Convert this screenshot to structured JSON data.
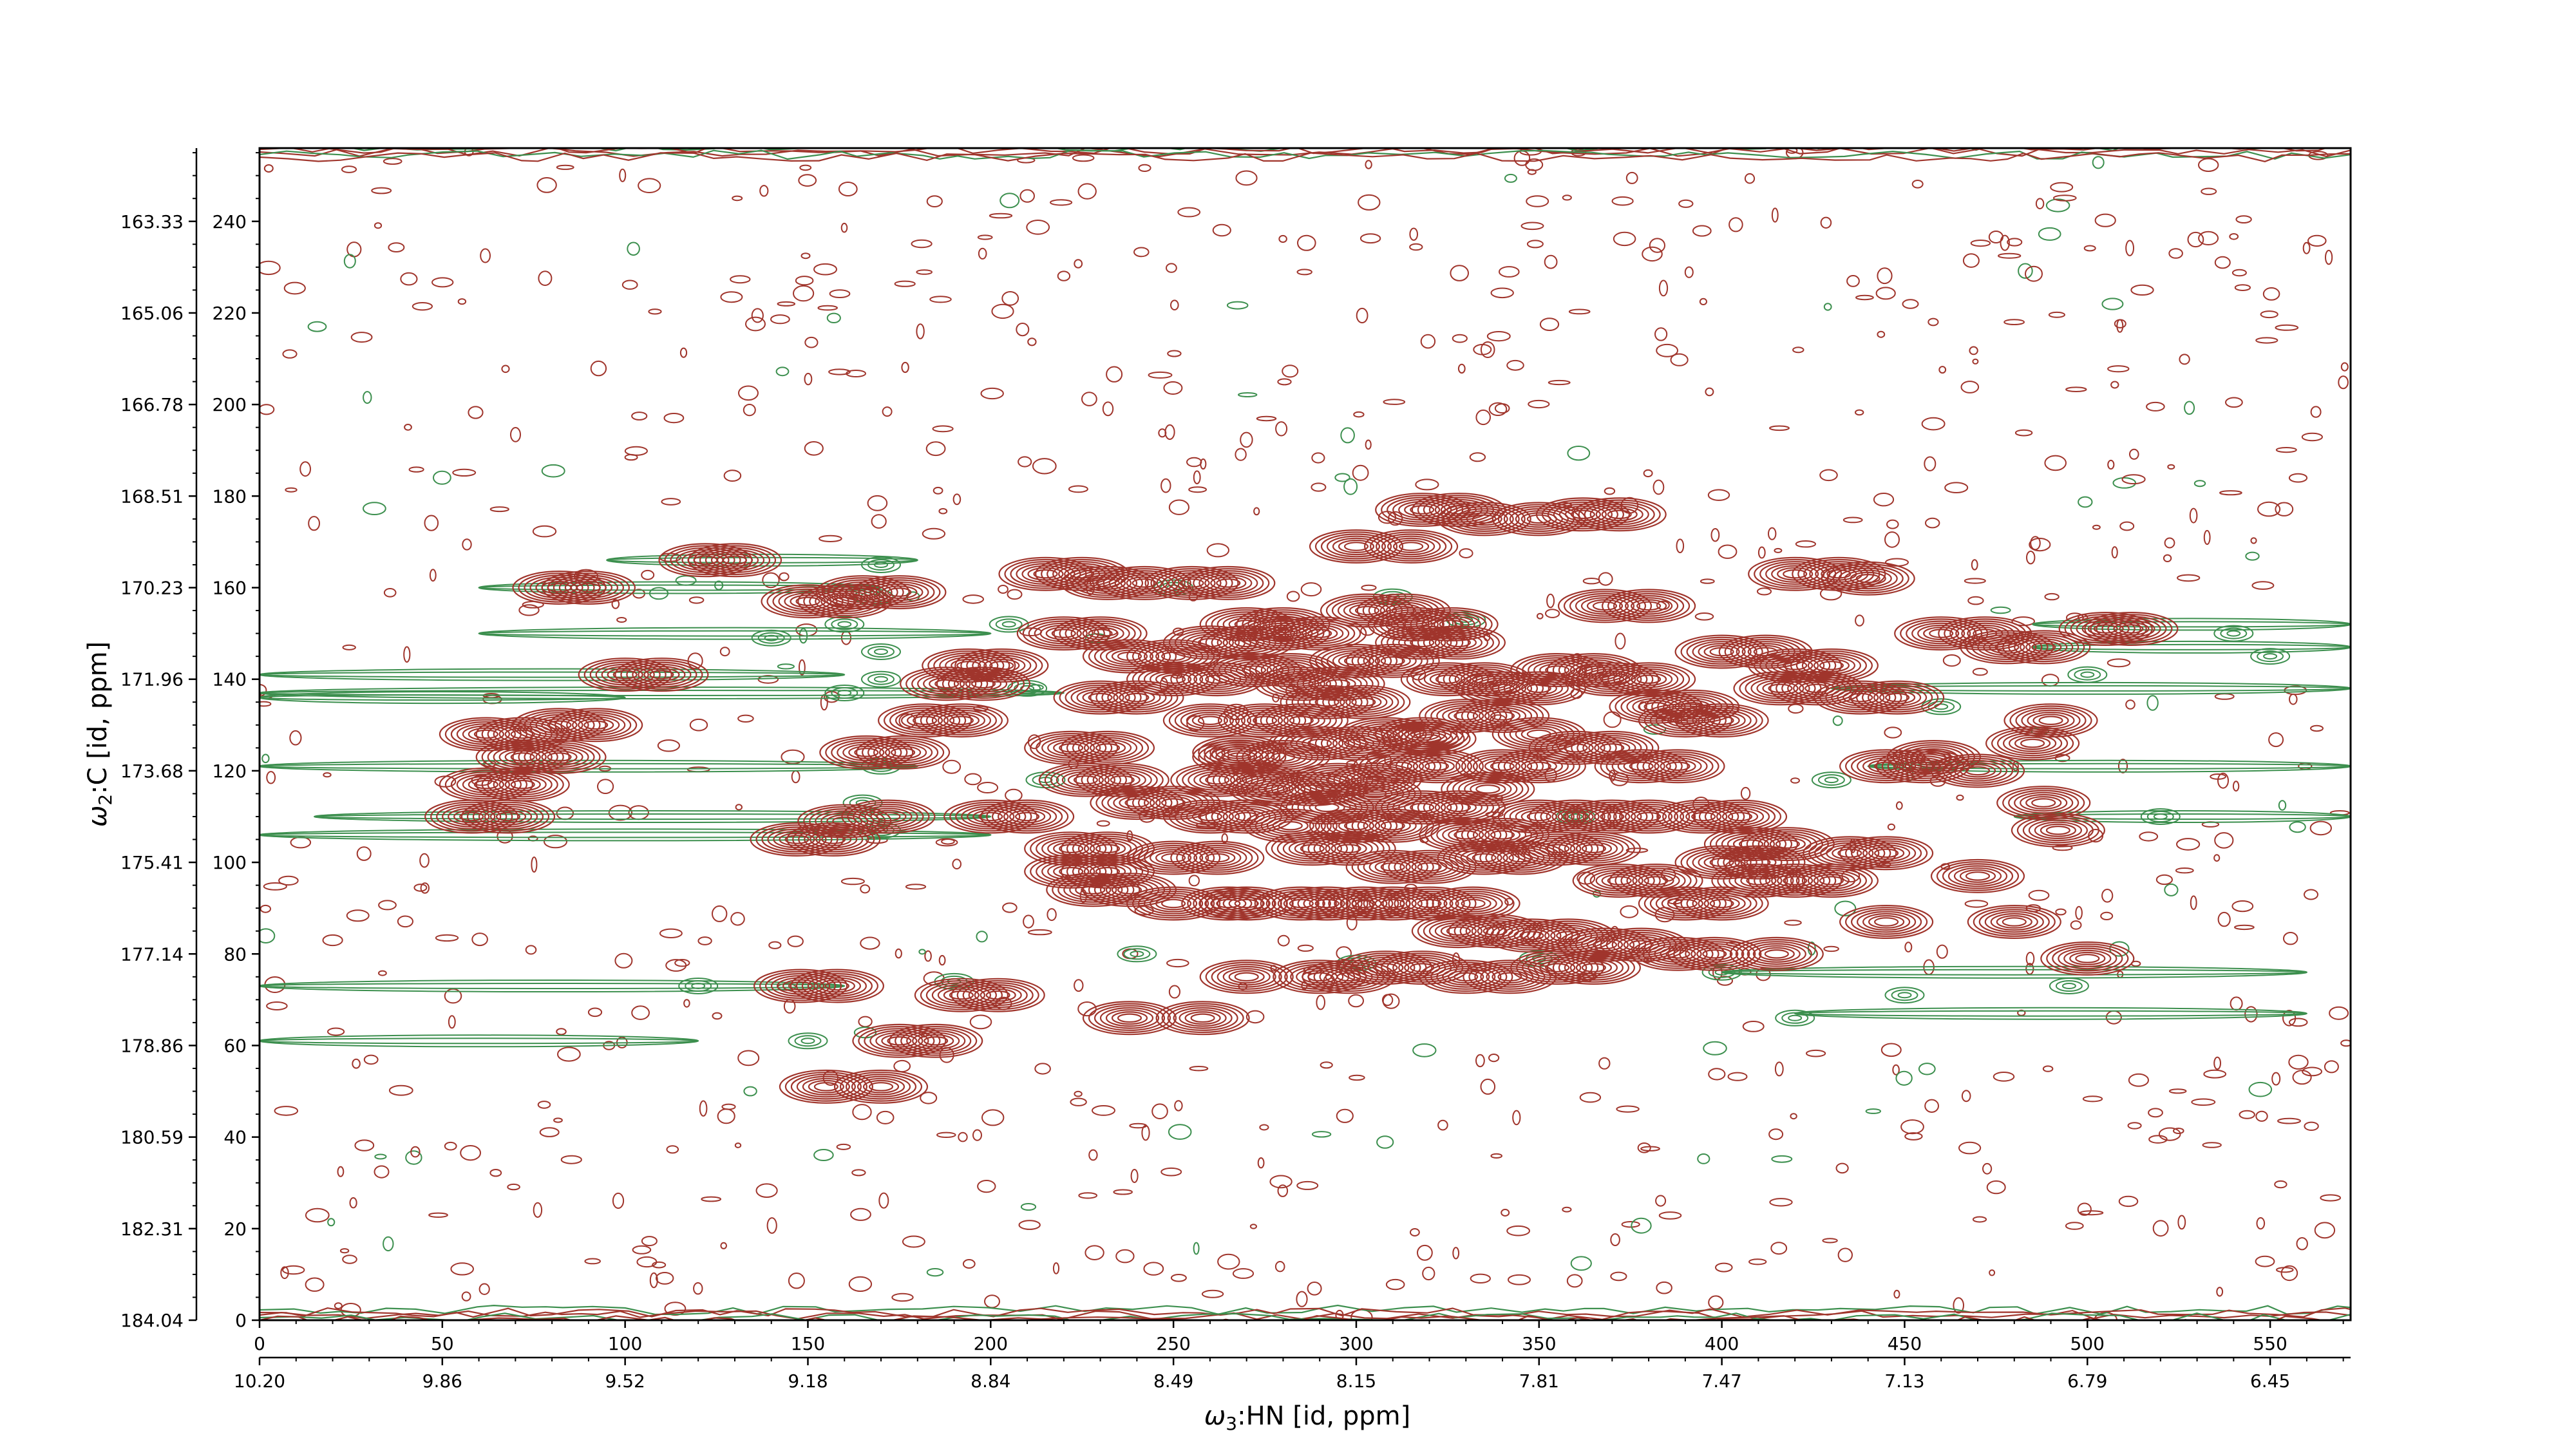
{
  "chart_data": {
    "type": "scatter",
    "subtype": "2D NMR contour spectrum (HNCO-like)",
    "title": "",
    "xlabel": {
      "symbol": "ω",
      "sub": "3",
      "text": ":HN [id, ppm]"
    },
    "ylabel": {
      "symbol": "ω",
      "sub": "2",
      "text": ":C [id, ppm]"
    },
    "x_index_ticks": [
      "0",
      "50",
      "100",
      "150",
      "200",
      "250",
      "300",
      "350",
      "400",
      "450",
      "500",
      "550"
    ],
    "x_ppm_ticks": [
      "10.20",
      "9.86",
      "9.52",
      "9.18",
      "8.84",
      "8.49",
      "8.15",
      "7.81",
      "7.47",
      "7.13",
      "6.79",
      "6.45"
    ],
    "y_index_ticks": [
      "0",
      "20",
      "40",
      "60",
      "80",
      "100",
      "120",
      "140",
      "160",
      "180",
      "200",
      "220",
      "240"
    ],
    "y_ppm_ticks": [
      "184.04",
      "182.31",
      "180.59",
      "178.86",
      "177.14",
      "175.41",
      "173.68",
      "171.96",
      "170.23",
      "168.51",
      "166.78",
      "165.06",
      "163.33"
    ],
    "xlim_index": [
      0,
      572
    ],
    "ylim_index": [
      0,
      256
    ],
    "contour_colors": {
      "positive": "#a0352c",
      "negative": "#3c8f4e"
    },
    "peaks_positive": [
      [
        82,
        160
      ],
      [
        90,
        160
      ],
      [
        122,
        166
      ],
      [
        130,
        166
      ],
      [
        150,
        157
      ],
      [
        160,
        157
      ],
      [
        165,
        159
      ],
      [
        175,
        159
      ],
      [
        100,
        141
      ],
      [
        110,
        141
      ],
      [
        62,
        128
      ],
      [
        72,
        128
      ],
      [
        82,
        130
      ],
      [
        92,
        130
      ],
      [
        72,
        123
      ],
      [
        82,
        123
      ],
      [
        62,
        117
      ],
      [
        72,
        117
      ],
      [
        58,
        110
      ],
      [
        68,
        110
      ],
      [
        147,
        105
      ],
      [
        157,
        105
      ],
      [
        160,
        109
      ],
      [
        172,
        110
      ],
      [
        166,
        124
      ],
      [
        176,
        124
      ],
      [
        182,
        131
      ],
      [
        192,
        131
      ],
      [
        188,
        139
      ],
      [
        198,
        139
      ],
      [
        194,
        143
      ],
      [
        203,
        143
      ],
      [
        200,
        110
      ],
      [
        210,
        110
      ],
      [
        215,
        163
      ],
      [
        225,
        163
      ],
      [
        232,
        161
      ],
      [
        242,
        161
      ],
      [
        255,
        161
      ],
      [
        265,
        161
      ],
      [
        148,
        73
      ],
      [
        158,
        73
      ],
      [
        155,
        51
      ],
      [
        170,
        51
      ],
      [
        175,
        61
      ],
      [
        185,
        61
      ],
      [
        192,
        71
      ],
      [
        202,
        71
      ],
      [
        238,
        66
      ],
      [
        258,
        66
      ],
      [
        250,
        91
      ],
      [
        265,
        91
      ],
      [
        270,
        91
      ],
      [
        285,
        91
      ],
      [
        292,
        91
      ],
      [
        302,
        91
      ],
      [
        310,
        91
      ],
      [
        320,
        91
      ],
      [
        332,
        91
      ],
      [
        270,
        75
      ],
      [
        290,
        75
      ],
      [
        298,
        75
      ],
      [
        308,
        77
      ],
      [
        318,
        77
      ],
      [
        328,
        85
      ],
      [
        338,
        85
      ],
      [
        348,
        84
      ],
      [
        358,
        84
      ],
      [
        368,
        82
      ],
      [
        378,
        82
      ],
      [
        388,
        80
      ],
      [
        398,
        80
      ],
      [
        330,
        75
      ],
      [
        342,
        75
      ],
      [
        355,
        77
      ],
      [
        365,
        77
      ],
      [
        415,
        80
      ],
      [
        300,
        169
      ],
      [
        315,
        169
      ],
      [
        318,
        177
      ],
      [
        328,
        177
      ],
      [
        335,
        175
      ],
      [
        350,
        175
      ],
      [
        362,
        176
      ],
      [
        372,
        176
      ],
      [
        368,
        156
      ],
      [
        380,
        156
      ],
      [
        420,
        163
      ],
      [
        432,
        163
      ],
      [
        440,
        162
      ],
      [
        460,
        150
      ],
      [
        472,
        150
      ],
      [
        478,
        147
      ],
      [
        488,
        147
      ],
      [
        505,
        151
      ],
      [
        512,
        151
      ],
      [
        400,
        146
      ],
      [
        412,
        146
      ],
      [
        420,
        143
      ],
      [
        430,
        143
      ],
      [
        416,
        138
      ],
      [
        426,
        138
      ],
      [
        438,
        136
      ],
      [
        448,
        136
      ],
      [
        445,
        121
      ],
      [
        455,
        121
      ],
      [
        458,
        123
      ],
      [
        470,
        120
      ],
      [
        435,
        102
      ],
      [
        445,
        102
      ],
      [
        470,
        97
      ],
      [
        445,
        87
      ],
      [
        480,
        87
      ],
      [
        500,
        79
      ],
      [
        488,
        113
      ],
      [
        492,
        107
      ],
      [
        485,
        126
      ],
      [
        490,
        131
      ],
      [
        410,
        96
      ],
      [
        420,
        96
      ],
      [
        430,
        96
      ],
      [
        390,
        91
      ],
      [
        400,
        91
      ],
      [
        372,
        96
      ],
      [
        382,
        96
      ],
      [
        400,
        100
      ],
      [
        410,
        100
      ],
      [
        395,
        110
      ],
      [
        405,
        110
      ],
      [
        408,
        104
      ],
      [
        418,
        104
      ],
      [
        220,
        150
      ],
      [
        230,
        150
      ],
      [
        238,
        145
      ],
      [
        250,
        145
      ],
      [
        260,
        148
      ],
      [
        270,
        148
      ],
      [
        280,
        150
      ],
      [
        290,
        150
      ],
      [
        230,
        136
      ],
      [
        240,
        136
      ],
      [
        250,
        140
      ],
      [
        262,
        140
      ],
      [
        272,
        142
      ],
      [
        282,
        142
      ],
      [
        222,
        125
      ],
      [
        232,
        125
      ],
      [
        226,
        118
      ],
      [
        236,
        118
      ],
      [
        240,
        113
      ],
      [
        250,
        113
      ],
      [
        260,
        110
      ],
      [
        270,
        110
      ],
      [
        222,
        103
      ],
      [
        232,
        103
      ],
      [
        222,
        98
      ],
      [
        232,
        98
      ],
      [
        228,
        94
      ],
      [
        238,
        94
      ],
      [
        250,
        101
      ],
      [
        262,
        101
      ],
      [
        268,
        123
      ],
      [
        280,
        123
      ],
      [
        290,
        126
      ],
      [
        300,
        126
      ],
      [
        275,
        131
      ],
      [
        285,
        131
      ],
      [
        292,
        135
      ],
      [
        302,
        135
      ],
      [
        308,
        128
      ],
      [
        318,
        128
      ],
      [
        262,
        118
      ],
      [
        272,
        118
      ],
      [
        278,
        116
      ],
      [
        288,
        116
      ],
      [
        295,
        118
      ],
      [
        305,
        118
      ],
      [
        312,
        121
      ],
      [
        322,
        121
      ],
      [
        318,
        112
      ],
      [
        328,
        112
      ],
      [
        300,
        108
      ],
      [
        310,
        108
      ],
      [
        330,
        106
      ],
      [
        340,
        106
      ],
      [
        288,
        103
      ],
      [
        298,
        103
      ],
      [
        310,
        99
      ],
      [
        320,
        99
      ],
      [
        335,
        101
      ],
      [
        345,
        101
      ],
      [
        355,
        103
      ],
      [
        365,
        103
      ],
      [
        350,
        110
      ],
      [
        360,
        110
      ],
      [
        370,
        110
      ],
      [
        380,
        110
      ],
      [
        340,
        121
      ],
      [
        350,
        121
      ],
      [
        360,
        125
      ],
      [
        370,
        125
      ],
      [
        378,
        121
      ],
      [
        388,
        121
      ],
      [
        390,
        131
      ],
      [
        400,
        131
      ],
      [
        382,
        134
      ],
      [
        392,
        134
      ],
      [
        370,
        140
      ],
      [
        380,
        140
      ],
      [
        355,
        142
      ],
      [
        365,
        142
      ],
      [
        340,
        138
      ],
      [
        350,
        138
      ],
      [
        325,
        140
      ],
      [
        335,
        140
      ],
      [
        318,
        148
      ],
      [
        328,
        148
      ],
      [
        300,
        144
      ],
      [
        310,
        144
      ],
      [
        285,
        139
      ],
      [
        295,
        139
      ],
      [
        330,
        132
      ],
      [
        340,
        132
      ],
      [
        316,
        152
      ],
      [
        326,
        152
      ],
      [
        303,
        155
      ],
      [
        313,
        155
      ],
      [
        270,
        152
      ],
      [
        280,
        152
      ],
      [
        350,
        128
      ],
      [
        320,
        127
      ],
      [
        260,
        131
      ],
      [
        268,
        124
      ],
      [
        282,
        108
      ],
      [
        292,
        112
      ],
      [
        305,
        115
      ],
      [
        336,
        116
      ]
    ],
    "peaks_negative": [
      [
        170,
        165
      ],
      [
        168,
        158
      ],
      [
        160,
        152
      ],
      [
        140,
        149
      ],
      [
        170,
        146
      ],
      [
        170,
        140
      ],
      [
        160,
        137
      ],
      [
        170,
        121
      ],
      [
        165,
        113
      ],
      [
        170,
        107
      ],
      [
        120,
        73
      ],
      [
        150,
        61
      ],
      [
        190,
        74
      ],
      [
        205,
        152
      ],
      [
        210,
        138
      ],
      [
        215,
        118
      ],
      [
        250,
        160
      ],
      [
        310,
        158
      ],
      [
        330,
        153
      ],
      [
        360,
        110
      ],
      [
        430,
        118
      ],
      [
        460,
        134
      ],
      [
        500,
        141
      ],
      [
        520,
        110
      ],
      [
        540,
        150
      ],
      [
        550,
        145
      ],
      [
        240,
        80
      ],
      [
        300,
        78
      ],
      [
        350,
        79
      ],
      [
        400,
        76
      ],
      [
        420,
        66
      ],
      [
        450,
        71
      ],
      [
        495,
        73
      ]
    ],
    "green_streaks": [
      [
        95,
        180,
        166
      ],
      [
        60,
        170,
        160
      ],
      [
        60,
        200,
        150
      ],
      [
        0,
        160,
        141
      ],
      [
        0,
        100,
        136
      ],
      [
        0,
        220,
        137
      ],
      [
        0,
        180,
        121
      ],
      [
        0,
        200,
        106
      ],
      [
        15,
        200,
        110
      ],
      [
        0,
        160,
        73
      ],
      [
        0,
        120,
        61
      ],
      [
        485,
        572,
        152
      ],
      [
        485,
        572,
        147
      ],
      [
        430,
        572,
        138
      ],
      [
        440,
        572,
        121
      ],
      [
        480,
        572,
        110
      ],
      [
        400,
        560,
        76
      ],
      [
        420,
        560,
        67
      ]
    ]
  }
}
